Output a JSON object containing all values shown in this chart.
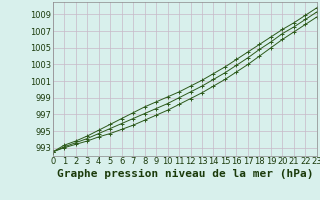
{
  "title": "Graphe pression niveau de la mer (hPa)",
  "background_color": "#d8f0ec",
  "plot_bg_color": "#d8f0ec",
  "grid_color": "#c8b8c8",
  "line_color": "#2d5a1b",
  "xlim": [
    0,
    23
  ],
  "ylim": [
    992.0,
    1010.5
  ],
  "yticks": [
    993,
    995,
    997,
    999,
    1001,
    1003,
    1005,
    1007,
    1009
  ],
  "xticks": [
    0,
    1,
    2,
    3,
    4,
    5,
    6,
    7,
    8,
    9,
    10,
    11,
    12,
    13,
    14,
    15,
    16,
    17,
    18,
    19,
    20,
    21,
    22,
    23
  ],
  "series1": [
    992.5,
    993.0,
    993.4,
    993.8,
    994.3,
    994.7,
    995.2,
    995.7,
    996.3,
    996.9,
    997.5,
    998.2,
    998.9,
    999.6,
    1000.4,
    1001.2,
    1002.1,
    1003.0,
    1004.0,
    1005.0,
    1006.0,
    1006.9,
    1007.8,
    1008.7
  ],
  "series2": [
    992.5,
    993.1,
    993.6,
    994.1,
    994.7,
    995.3,
    995.9,
    996.5,
    997.1,
    997.7,
    998.3,
    999.0,
    999.7,
    1000.4,
    1001.2,
    1002.0,
    1002.9,
    1003.8,
    1004.8,
    1005.7,
    1006.7,
    1007.5,
    1008.4,
    1009.3
  ],
  "series3": [
    992.5,
    993.3,
    993.8,
    994.4,
    995.1,
    995.8,
    996.5,
    997.2,
    997.9,
    998.5,
    999.1,
    999.7,
    1000.4,
    1001.1,
    1001.9,
    1002.7,
    1003.6,
    1004.5,
    1005.4,
    1006.3,
    1007.2,
    1008.0,
    1008.9,
    1009.8
  ],
  "title_fontsize": 8,
  "tick_fontsize": 6,
  "title_color": "#1a3a0a",
  "tick_color": "#1a3a0a"
}
